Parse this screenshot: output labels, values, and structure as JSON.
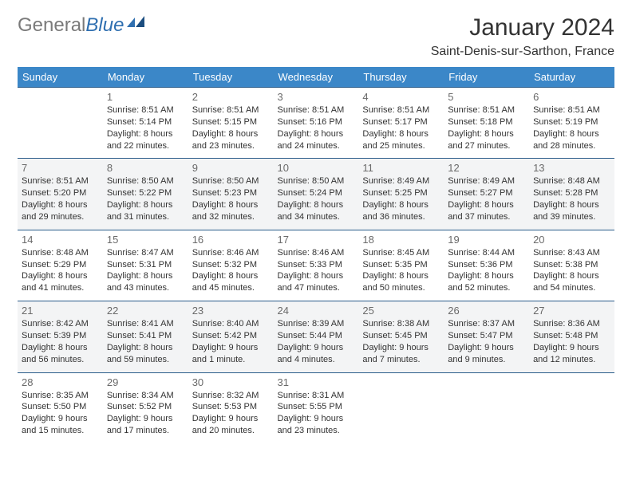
{
  "brand": {
    "part1": "General",
    "part2": "Blue"
  },
  "title": "January 2024",
  "location": "Saint-Denis-sur-Sarthon, France",
  "colors": {
    "header_bg": "#3b87c8",
    "header_text": "#ffffff",
    "row_border": "#2a5c8a",
    "alt_row_bg": "#f3f4f5",
    "text": "#333333",
    "daynum": "#6a6a6a",
    "brand_gray": "#7a7a7a",
    "brand_blue": "#2f6fb0"
  },
  "weekdays": [
    "Sunday",
    "Monday",
    "Tuesday",
    "Wednesday",
    "Thursday",
    "Friday",
    "Saturday"
  ],
  "weeks": [
    [
      null,
      {
        "n": "1",
        "sr": "Sunrise: 8:51 AM",
        "ss": "Sunset: 5:14 PM",
        "dl1": "Daylight: 8 hours",
        "dl2": "and 22 minutes."
      },
      {
        "n": "2",
        "sr": "Sunrise: 8:51 AM",
        "ss": "Sunset: 5:15 PM",
        "dl1": "Daylight: 8 hours",
        "dl2": "and 23 minutes."
      },
      {
        "n": "3",
        "sr": "Sunrise: 8:51 AM",
        "ss": "Sunset: 5:16 PM",
        "dl1": "Daylight: 8 hours",
        "dl2": "and 24 minutes."
      },
      {
        "n": "4",
        "sr": "Sunrise: 8:51 AM",
        "ss": "Sunset: 5:17 PM",
        "dl1": "Daylight: 8 hours",
        "dl2": "and 25 minutes."
      },
      {
        "n": "5",
        "sr": "Sunrise: 8:51 AM",
        "ss": "Sunset: 5:18 PM",
        "dl1": "Daylight: 8 hours",
        "dl2": "and 27 minutes."
      },
      {
        "n": "6",
        "sr": "Sunrise: 8:51 AM",
        "ss": "Sunset: 5:19 PM",
        "dl1": "Daylight: 8 hours",
        "dl2": "and 28 minutes."
      }
    ],
    [
      {
        "n": "7",
        "sr": "Sunrise: 8:51 AM",
        "ss": "Sunset: 5:20 PM",
        "dl1": "Daylight: 8 hours",
        "dl2": "and 29 minutes."
      },
      {
        "n": "8",
        "sr": "Sunrise: 8:50 AM",
        "ss": "Sunset: 5:22 PM",
        "dl1": "Daylight: 8 hours",
        "dl2": "and 31 minutes."
      },
      {
        "n": "9",
        "sr": "Sunrise: 8:50 AM",
        "ss": "Sunset: 5:23 PM",
        "dl1": "Daylight: 8 hours",
        "dl2": "and 32 minutes."
      },
      {
        "n": "10",
        "sr": "Sunrise: 8:50 AM",
        "ss": "Sunset: 5:24 PM",
        "dl1": "Daylight: 8 hours",
        "dl2": "and 34 minutes."
      },
      {
        "n": "11",
        "sr": "Sunrise: 8:49 AM",
        "ss": "Sunset: 5:25 PM",
        "dl1": "Daylight: 8 hours",
        "dl2": "and 36 minutes."
      },
      {
        "n": "12",
        "sr": "Sunrise: 8:49 AM",
        "ss": "Sunset: 5:27 PM",
        "dl1": "Daylight: 8 hours",
        "dl2": "and 37 minutes."
      },
      {
        "n": "13",
        "sr": "Sunrise: 8:48 AM",
        "ss": "Sunset: 5:28 PM",
        "dl1": "Daylight: 8 hours",
        "dl2": "and 39 minutes."
      }
    ],
    [
      {
        "n": "14",
        "sr": "Sunrise: 8:48 AM",
        "ss": "Sunset: 5:29 PM",
        "dl1": "Daylight: 8 hours",
        "dl2": "and 41 minutes."
      },
      {
        "n": "15",
        "sr": "Sunrise: 8:47 AM",
        "ss": "Sunset: 5:31 PM",
        "dl1": "Daylight: 8 hours",
        "dl2": "and 43 minutes."
      },
      {
        "n": "16",
        "sr": "Sunrise: 8:46 AM",
        "ss": "Sunset: 5:32 PM",
        "dl1": "Daylight: 8 hours",
        "dl2": "and 45 minutes."
      },
      {
        "n": "17",
        "sr": "Sunrise: 8:46 AM",
        "ss": "Sunset: 5:33 PM",
        "dl1": "Daylight: 8 hours",
        "dl2": "and 47 minutes."
      },
      {
        "n": "18",
        "sr": "Sunrise: 8:45 AM",
        "ss": "Sunset: 5:35 PM",
        "dl1": "Daylight: 8 hours",
        "dl2": "and 50 minutes."
      },
      {
        "n": "19",
        "sr": "Sunrise: 8:44 AM",
        "ss": "Sunset: 5:36 PM",
        "dl1": "Daylight: 8 hours",
        "dl2": "and 52 minutes."
      },
      {
        "n": "20",
        "sr": "Sunrise: 8:43 AM",
        "ss": "Sunset: 5:38 PM",
        "dl1": "Daylight: 8 hours",
        "dl2": "and 54 minutes."
      }
    ],
    [
      {
        "n": "21",
        "sr": "Sunrise: 8:42 AM",
        "ss": "Sunset: 5:39 PM",
        "dl1": "Daylight: 8 hours",
        "dl2": "and 56 minutes."
      },
      {
        "n": "22",
        "sr": "Sunrise: 8:41 AM",
        "ss": "Sunset: 5:41 PM",
        "dl1": "Daylight: 8 hours",
        "dl2": "and 59 minutes."
      },
      {
        "n": "23",
        "sr": "Sunrise: 8:40 AM",
        "ss": "Sunset: 5:42 PM",
        "dl1": "Daylight: 9 hours",
        "dl2": "and 1 minute."
      },
      {
        "n": "24",
        "sr": "Sunrise: 8:39 AM",
        "ss": "Sunset: 5:44 PM",
        "dl1": "Daylight: 9 hours",
        "dl2": "and 4 minutes."
      },
      {
        "n": "25",
        "sr": "Sunrise: 8:38 AM",
        "ss": "Sunset: 5:45 PM",
        "dl1": "Daylight: 9 hours",
        "dl2": "and 7 minutes."
      },
      {
        "n": "26",
        "sr": "Sunrise: 8:37 AM",
        "ss": "Sunset: 5:47 PM",
        "dl1": "Daylight: 9 hours",
        "dl2": "and 9 minutes."
      },
      {
        "n": "27",
        "sr": "Sunrise: 8:36 AM",
        "ss": "Sunset: 5:48 PM",
        "dl1": "Daylight: 9 hours",
        "dl2": "and 12 minutes."
      }
    ],
    [
      {
        "n": "28",
        "sr": "Sunrise: 8:35 AM",
        "ss": "Sunset: 5:50 PM",
        "dl1": "Daylight: 9 hours",
        "dl2": "and 15 minutes."
      },
      {
        "n": "29",
        "sr": "Sunrise: 8:34 AM",
        "ss": "Sunset: 5:52 PM",
        "dl1": "Daylight: 9 hours",
        "dl2": "and 17 minutes."
      },
      {
        "n": "30",
        "sr": "Sunrise: 8:32 AM",
        "ss": "Sunset: 5:53 PM",
        "dl1": "Daylight: 9 hours",
        "dl2": "and 20 minutes."
      },
      {
        "n": "31",
        "sr": "Sunrise: 8:31 AM",
        "ss": "Sunset: 5:55 PM",
        "dl1": "Daylight: 9 hours",
        "dl2": "and 23 minutes."
      },
      null,
      null,
      null
    ]
  ]
}
